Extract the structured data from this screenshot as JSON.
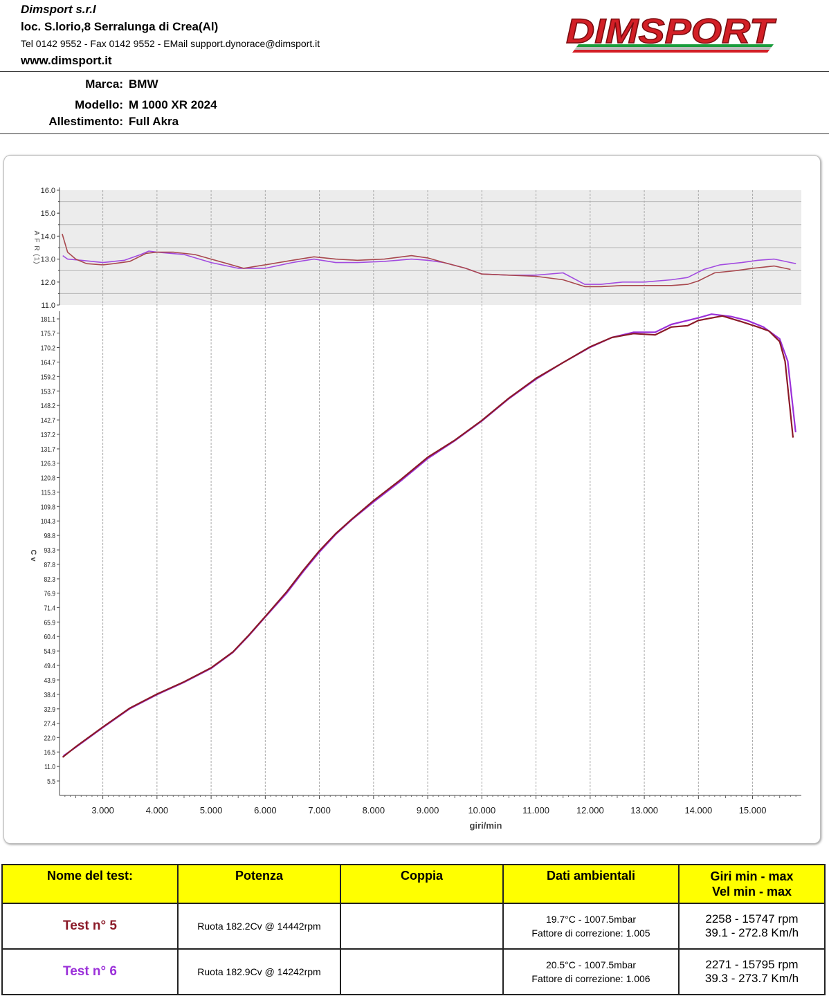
{
  "company": {
    "name": "Dimsport s.r.l",
    "address": "loc. S.lorio,8 Serralunga di Crea(Al)",
    "contacts": "Tel 0142 9552 - Fax 0142 9552 - EMail support.dynorace@dimsport.it",
    "website": "www.dimsport.it",
    "logo_text": "DIMSPORT"
  },
  "vehicle": {
    "make_label": "Marca:",
    "make": "BMW",
    "model_label": "Modello:",
    "model": "M 1000 XR 2024",
    "trim_label": "Allestimento:",
    "trim": "Full Akra"
  },
  "colors": {
    "test5": "#8b1a28",
    "test6": "#9b30d9",
    "afr_test5": "#a8484e",
    "afr_test6": "#a24be0",
    "table_header": "#ffff00"
  },
  "chart_data": [
    {
      "type": "line",
      "ylabel": "A F R (1)",
      "xlim": [
        2200,
        15900
      ],
      "ylim": [
        11.0,
        16.0
      ],
      "yticks": [
        "11.0",
        "12.0",
        "13.0",
        "14.0",
        "15.0",
        "16.0"
      ],
      "series": [
        {
          "name": "Test n° 5",
          "points": [
            [
              2250,
              14.1
            ],
            [
              2350,
              13.3
            ],
            [
              2500,
              13.0
            ],
            [
              2700,
              12.8
            ],
            [
              3000,
              12.75
            ],
            [
              3200,
              12.8
            ],
            [
              3500,
              12.9
            ],
            [
              3800,
              13.25
            ],
            [
              4000,
              13.3
            ],
            [
              4300,
              13.3
            ],
            [
              4700,
              13.2
            ],
            [
              5000,
              13.0
            ],
            [
              5300,
              12.8
            ],
            [
              5600,
              12.6
            ],
            [
              6000,
              12.75
            ],
            [
              6500,
              12.95
            ],
            [
              6900,
              13.1
            ],
            [
              7300,
              13.0
            ],
            [
              7700,
              12.95
            ],
            [
              8200,
              13.0
            ],
            [
              8700,
              13.15
            ],
            [
              9000,
              13.05
            ],
            [
              9300,
              12.85
            ],
            [
              9700,
              12.6
            ],
            [
              10000,
              12.35
            ],
            [
              10500,
              12.3
            ],
            [
              11000,
              12.25
            ],
            [
              11500,
              12.1
            ],
            [
              11900,
              11.8
            ],
            [
              12200,
              11.8
            ],
            [
              12600,
              11.85
            ],
            [
              13000,
              11.85
            ],
            [
              13500,
              11.85
            ],
            [
              13800,
              11.9
            ],
            [
              14000,
              12.05
            ],
            [
              14300,
              12.4
            ],
            [
              14700,
              12.5
            ],
            [
              15000,
              12.6
            ],
            [
              15400,
              12.7
            ],
            [
              15700,
              12.55
            ]
          ]
        },
        {
          "name": "Test n° 6",
          "points": [
            [
              2260,
              13.15
            ],
            [
              2350,
              13.0
            ],
            [
              2600,
              12.95
            ],
            [
              3000,
              12.85
            ],
            [
              3400,
              12.95
            ],
            [
              3700,
              13.2
            ],
            [
              3850,
              13.35
            ],
            [
              4000,
              13.3
            ],
            [
              4500,
              13.2
            ],
            [
              5000,
              12.85
            ],
            [
              5500,
              12.6
            ],
            [
              6000,
              12.6
            ],
            [
              6500,
              12.85
            ],
            [
              6900,
              13.0
            ],
            [
              7300,
              12.85
            ],
            [
              7700,
              12.85
            ],
            [
              8200,
              12.9
            ],
            [
              8700,
              13.0
            ],
            [
              9000,
              12.95
            ],
            [
              9300,
              12.85
            ],
            [
              9700,
              12.6
            ],
            [
              10000,
              12.35
            ],
            [
              10500,
              12.3
            ],
            [
              11000,
              12.3
            ],
            [
              11500,
              12.4
            ],
            [
              11900,
              11.9
            ],
            [
              12200,
              11.9
            ],
            [
              12600,
              12.0
            ],
            [
              13000,
              12.0
            ],
            [
              13500,
              12.1
            ],
            [
              13800,
              12.2
            ],
            [
              14100,
              12.55
            ],
            [
              14400,
              12.75
            ],
            [
              14800,
              12.85
            ],
            [
              15100,
              12.95
            ],
            [
              15400,
              13.0
            ],
            [
              15600,
              12.9
            ],
            [
              15800,
              12.8
            ]
          ]
        }
      ]
    },
    {
      "type": "line",
      "xlabel": "giri/min",
      "ylabel": "C v",
      "xlim": [
        2200,
        15900
      ],
      "ylim": [
        0,
        184
      ],
      "xticks": [
        3000,
        4000,
        5000,
        6000,
        7000,
        8000,
        9000,
        10000,
        11000,
        12000,
        13000,
        14000,
        15000
      ],
      "xtick_labels": [
        "3.000",
        "4.000",
        "5.000",
        "6.000",
        "7.000",
        "8.000",
        "9.000",
        "10.000",
        "11.000",
        "12.000",
        "13.000",
        "14.000",
        "15.000"
      ],
      "yticks": [
        "5.5",
        "11.0",
        "16.5",
        "22.0",
        "27.4",
        "32.9",
        "38.4",
        "43.9",
        "49.4",
        "54.9",
        "60.4",
        "65.9",
        "71.4",
        "76.9",
        "82.3",
        "87.8",
        "93.3",
        "98.8",
        "104.3",
        "109.8",
        "115.3",
        "120.8",
        "126.3",
        "131.7",
        "137.2",
        "142.7",
        "148.2",
        "153.7",
        "159.2",
        "164.7",
        "170.2",
        "175.7",
        "181.1"
      ],
      "series": [
        {
          "name": "Test n° 5",
          "points": [
            [
              2258,
              14.5
            ],
            [
              2500,
              18.5
            ],
            [
              3000,
              26.0
            ],
            [
              3500,
              33.2
            ],
            [
              4000,
              38.5
            ],
            [
              4500,
              43.2
            ],
            [
              5000,
              48.5
            ],
            [
              5400,
              54.5
            ],
            [
              5700,
              61.0
            ],
            [
              6000,
              68.0
            ],
            [
              6400,
              77.5
            ],
            [
              6700,
              85.5
            ],
            [
              7000,
              93.0
            ],
            [
              7300,
              99.5
            ],
            [
              7600,
              105.0
            ],
            [
              8000,
              112.0
            ],
            [
              8500,
              120.0
            ],
            [
              9000,
              128.5
            ],
            [
              9500,
              135.0
            ],
            [
              10000,
              142.5
            ],
            [
              10500,
              151.0
            ],
            [
              11000,
              158.5
            ],
            [
              11500,
              164.5
            ],
            [
              12000,
              170.5
            ],
            [
              12400,
              174.0
            ],
            [
              12800,
              175.5
            ],
            [
              13200,
              175.0
            ],
            [
              13500,
              178.0
            ],
            [
              13800,
              178.5
            ],
            [
              14000,
              180.5
            ],
            [
              14442,
              182.2
            ],
            [
              14800,
              180.0
            ],
            [
              15100,
              178.0
            ],
            [
              15300,
              176.5
            ],
            [
              15500,
              172.5
            ],
            [
              15600,
              165.0
            ],
            [
              15747,
              136.0
            ]
          ]
        },
        {
          "name": "Test n° 6",
          "points": [
            [
              2271,
              15.0
            ],
            [
              2500,
              18.3
            ],
            [
              3000,
              25.8
            ],
            [
              3500,
              33.0
            ],
            [
              4000,
              38.3
            ],
            [
              4500,
              43.0
            ],
            [
              5000,
              48.3
            ],
            [
              5400,
              54.3
            ],
            [
              5700,
              60.8
            ],
            [
              6000,
              67.8
            ],
            [
              6400,
              77.0
            ],
            [
              6700,
              85.0
            ],
            [
              7000,
              92.5
            ],
            [
              7300,
              99.2
            ],
            [
              7600,
              104.8
            ],
            [
              8000,
              111.5
            ],
            [
              8500,
              119.5
            ],
            [
              9000,
              128.0
            ],
            [
              9500,
              134.8
            ],
            [
              10000,
              142.3
            ],
            [
              10500,
              150.8
            ],
            [
              11000,
              158.2
            ],
            [
              11500,
              164.5
            ],
            [
              12000,
              170.3
            ],
            [
              12400,
              174.0
            ],
            [
              12800,
              176.0
            ],
            [
              13200,
              176.0
            ],
            [
              13500,
              179.0
            ],
            [
              13800,
              180.5
            ],
            [
              14000,
              181.5
            ],
            [
              14242,
              182.9
            ],
            [
              14600,
              182.0
            ],
            [
              14900,
              180.5
            ],
            [
              15200,
              178.0
            ],
            [
              15500,
              173.5
            ],
            [
              15650,
              165.0
            ],
            [
              15795,
              138.0
            ]
          ]
        }
      ]
    }
  ],
  "results": {
    "headers": {
      "test_name": "Nome del test:",
      "power": "Potenza",
      "torque": "Coppia",
      "ambient": "Dati ambientali",
      "range_line1": "Giri min - max",
      "range_line2": "Vel  min - max"
    },
    "rows": [
      {
        "test": "Test n° 5",
        "power": "Ruota 182.2Cv @ 14442rpm",
        "torque": "",
        "ambient_line1": "19.7°C - 1007.5mbar",
        "ambient_line2": "Fattore di correzione: 1.005",
        "rpm_range": "2258 - 15747 rpm",
        "speed_range": "39.1 - 272.8 Km/h"
      },
      {
        "test": "Test n° 6",
        "power": "Ruota 182.9Cv @ 14242rpm",
        "torque": "",
        "ambient_line1": "20.5°C - 1007.5mbar",
        "ambient_line2": "Fattore di correzione: 1.006",
        "rpm_range": "2271 - 15795 rpm",
        "speed_range": "39.3 - 273.7 Km/h"
      }
    ]
  }
}
